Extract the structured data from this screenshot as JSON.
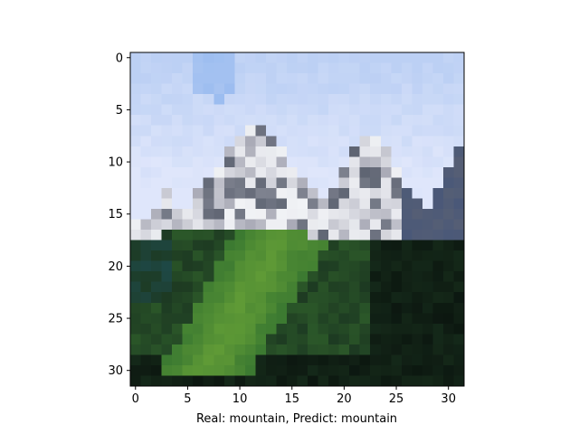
{
  "figure": {
    "xlabel": "Real: mountain, Predict: mountain"
  },
  "image": {
    "subject": "pixelated-mountain-photo",
    "grid_size": 32,
    "colors": {
      "sky_light": "#dfe6fb",
      "sky_blue": "#bcd0f4",
      "sky_accent": "#9cbdf0",
      "rock_light": "#e3e4ea",
      "rock_mid": "#a9aab6",
      "rock_dark": "#5e6472",
      "rock_blue_shadow": "#4a5878",
      "snow": "#f4f6f8",
      "grass_bright": "#5f9a36",
      "grass_mid": "#3c7a31",
      "forest_dark": "#1d3a22",
      "forest_black": "#0c1710",
      "teal_dark": "#1e4846"
    }
  },
  "chart_data": {
    "type": "heatmap",
    "title": "",
    "xlabel": "Real: mountain, Predict: mountain",
    "ylabel": "",
    "xlim": [
      -0.5,
      31.5
    ],
    "ylim": [
      31.5,
      -0.5
    ],
    "xticks": [
      0,
      5,
      10,
      15,
      20,
      25,
      30
    ],
    "yticks": [
      0,
      5,
      10,
      15,
      20,
      25,
      30
    ],
    "xtick_labels": [
      "0",
      "5",
      "10",
      "15",
      "20",
      "25",
      "30"
    ],
    "ytick_labels": [
      "0",
      "5",
      "10",
      "15",
      "20",
      "25",
      "30"
    ],
    "grid": false
  }
}
